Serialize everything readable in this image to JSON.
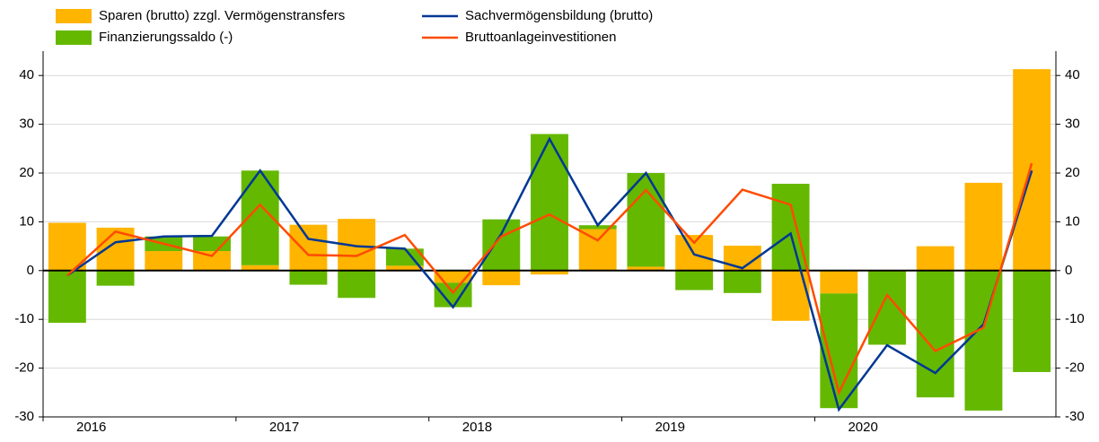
{
  "chart_data": {
    "type": "bar_line",
    "categories": [
      "2016",
      null,
      null,
      null,
      "2017",
      null,
      null,
      null,
      "2018",
      null,
      null,
      null,
      "2019",
      null,
      null,
      null,
      "2020",
      null,
      null,
      null,
      null
    ],
    "series": [
      {
        "name": "Sparen (brutto) zzgl. Vermögenstransfers",
        "kind": "bar",
        "color": "#ffb400",
        "values": [
          9.8,
          8.8,
          4.0,
          4.0,
          1.1,
          9.4,
          10.6,
          1.0,
          -2.5,
          -3.0,
          -0.8,
          8.5,
          0.8,
          7.3,
          5.1,
          -10.3,
          -4.7,
          0,
          5.0,
          18.0,
          41.3
        ]
      },
      {
        "name": "Finanzierungssaldo (-)",
        "kind": "bar",
        "color": "#65b800",
        "values": [
          -10.7,
          -3.1,
          3.0,
          3.0,
          19.4,
          -2.9,
          -5.6,
          3.5,
          -5.0,
          10.5,
          28.0,
          0.8,
          19.2,
          -4.0,
          -4.6,
          17.8,
          -23.5,
          -15.2,
          -26.0,
          -28.7,
          -20.8
        ]
      },
      {
        "name": "Sachvermögensbildung (brutto)",
        "kind": "line",
        "color": "#003894",
        "values": [
          -1.0,
          5.8,
          7.0,
          7.1,
          20.5,
          6.5,
          5.0,
          4.5,
          -7.5,
          7.5,
          27.0,
          9.3,
          20.0,
          3.3,
          0.5,
          7.6,
          -28.5,
          -15.3,
          -21.0,
          -11.0,
          20.5
        ]
      },
      {
        "name": "Bruttoanlageinvestitionen",
        "kind": "line",
        "color": "#ff4b00",
        "values": [
          -1.0,
          8.0,
          5.5,
          3.0,
          13.5,
          3.2,
          3.0,
          7.3,
          -4.5,
          7.0,
          11.5,
          6.2,
          16.5,
          5.7,
          16.6,
          13.5,
          -25.0,
          -5.0,
          -16.5,
          -11.7,
          22.0
        ]
      }
    ],
    "ylim": [
      -30,
      45
    ],
    "yticks": [
      -30,
      -20,
      -10,
      0,
      10,
      20,
      30,
      40
    ],
    "grid": true
  }
}
